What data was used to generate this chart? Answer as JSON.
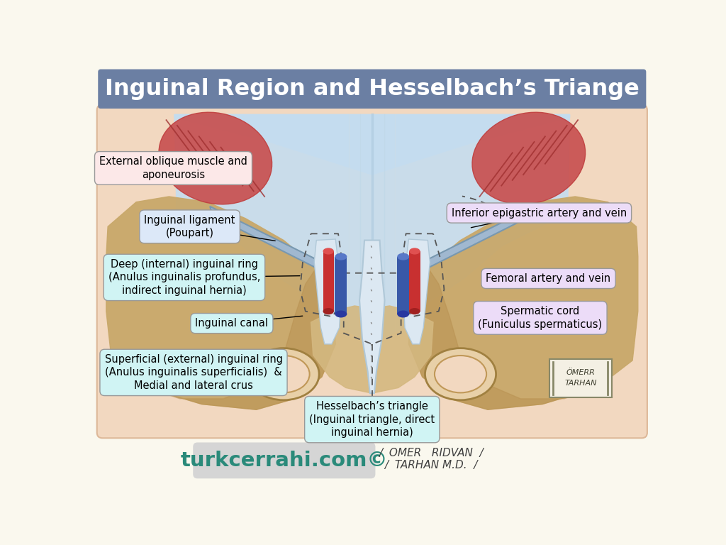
{
  "title": "Inguinal Region and Hesselbach’s Triange",
  "title_bg": "#6b7fa3",
  "title_color": "#ffffff",
  "bg_color": "#faf8ee",
  "bottom_url": "turkcerrahi.com©",
  "labels": {
    "ext_oblique": "External oblique muscle and\naponeurosis",
    "ing_lig": "Inguinal ligament\n(Poupart)",
    "deep_ring": "Deep (internal) inguinal ring\n(Anulus inguinalis profundus,\nindirect inguinal hernia)",
    "ing_canal": "Inguinal canal",
    "superficial_ring": "Superficial (external) inguinal ring\n(Anulus inguinalis superficialis)  &\nMedial and lateral crus",
    "hesselbach": "Hesselbach’s triangle\n(Inguinal triangle, direct\ninguinal hernia)",
    "inf_epigastric": "Inferior epigastric artery and vein",
    "femoral": "Femoral artery and vein",
    "spermatic": "Spermatic cord\n(Funiculus spermaticus)"
  },
  "label_colors": {
    "ext_oblique": "#fce8e8",
    "ing_lig": "#dce8f8",
    "deep_ring": "#d0f4f4",
    "ing_canal": "#d0f4f4",
    "superficial_ring": "#d0f4f4",
    "hesselbach": "#d0f4f4",
    "inf_epigastric": "#ecdcf8",
    "femoral": "#ecdcf8",
    "spermatic": "#ecdcf8"
  },
  "body_bg": "#f2d8c0",
  "bone_color": "#c8a86a",
  "bone_shadow": "#a88848",
  "fascia_color": "#c4ddf0",
  "fascia_dark": "#9ab8d0",
  "muscle_color": "#c85050",
  "muscle_shadow": "#a03030",
  "vessel_red": "#d04040",
  "vessel_blue": "#4870c8",
  "ligament_color": "#a8c0d8",
  "white_struct": "#dce8f0",
  "pubic_color": "#e8d0b0"
}
